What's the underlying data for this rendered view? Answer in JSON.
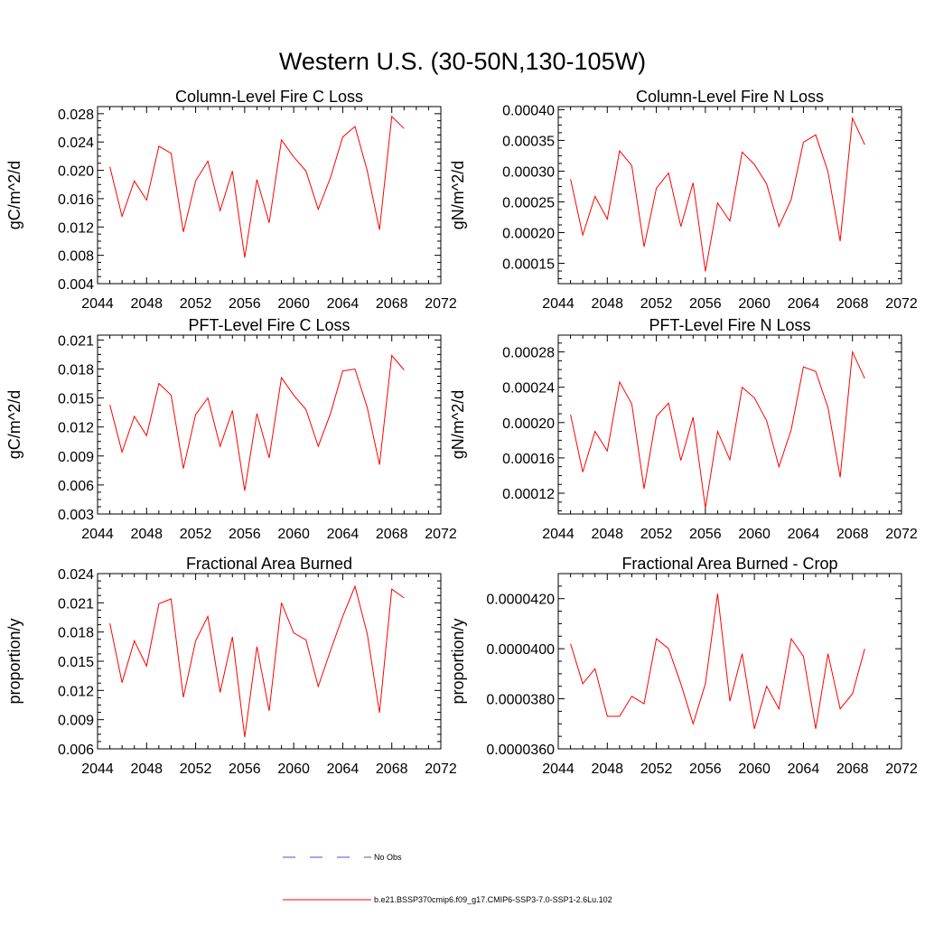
{
  "title": "Western U.S. (30-50N,130-105W)",
  "legend": [
    {
      "label": "No Obs",
      "color": "#4d4dcc",
      "style": "dashed"
    },
    {
      "label": "b.e21.BSSP370cmip6.f09_g17.CMIP6-SSP3-7.0-SSP1-2.6Lu.102",
      "color": "#ff0000",
      "style": "solid"
    }
  ],
  "chart_data": [
    {
      "type": "line",
      "title": "Column-Level Fire C Loss",
      "ylabel": "gC/m^2/d",
      "xlim": [
        2044,
        2072
      ],
      "ylim": [
        0.004,
        0.029
      ],
      "xticks": [
        "2044",
        "2048",
        "2052",
        "2056",
        "2060",
        "2064",
        "2068",
        "2072"
      ],
      "yticks": [
        "0.004",
        "0.008",
        "0.012",
        "0.016",
        "0.020",
        "0.024",
        "0.028"
      ],
      "x": [
        2045,
        2046,
        2047,
        2048,
        2049,
        2050,
        2051,
        2052,
        2053,
        2054,
        2055,
        2056,
        2057,
        2058,
        2059,
        2060,
        2061,
        2062,
        2063,
        2064,
        2065,
        2066,
        2067,
        2068,
        2069
      ],
      "values": [
        0.0205,
        0.0135,
        0.0185,
        0.0158,
        0.0234,
        0.0224,
        0.0113,
        0.0185,
        0.0213,
        0.0143,
        0.0199,
        0.0077,
        0.0187,
        0.0126,
        0.0243,
        0.0219,
        0.0199,
        0.0145,
        0.019,
        0.0247,
        0.0262,
        0.0199,
        0.0116,
        0.0276,
        0.0259
      ],
      "color": "#ff0000"
    },
    {
      "type": "line",
      "title": "Column-Level Fire N Loss",
      "ylabel": "gN/m^2/d",
      "xlim": [
        2044,
        2072
      ],
      "ylim": [
        0.000117,
        0.000405
      ],
      "xticks": [
        "2044",
        "2048",
        "2052",
        "2056",
        "2060",
        "2064",
        "2068",
        "2072"
      ],
      "yticks": [
        "0.00015",
        "0.00020",
        "0.00025",
        "0.00030",
        "0.00035",
        "0.00040"
      ],
      "x": [
        2045,
        2046,
        2047,
        2048,
        2049,
        2050,
        2051,
        2052,
        2053,
        2054,
        2055,
        2056,
        2057,
        2058,
        2059,
        2060,
        2061,
        2062,
        2063,
        2064,
        2065,
        2066,
        2067,
        2068,
        2069
      ],
      "values": [
        0.000287,
        0.000196,
        0.000259,
        0.000222,
        0.000333,
        0.000309,
        0.000177,
        0.000272,
        0.000297,
        0.00021,
        0.000281,
        0.000137,
        0.000248,
        0.000219,
        0.000331,
        0.000311,
        0.000279,
        0.00021,
        0.000254,
        0.000347,
        0.000359,
        0.000299,
        0.000186,
        0.000386,
        0.000343
      ],
      "color": "#ff0000"
    },
    {
      "type": "line",
      "title": "PFT-Level Fire C Loss",
      "ylabel": "gC/m^2/d",
      "xlim": [
        2044,
        2072
      ],
      "ylim": [
        0.003,
        0.0215
      ],
      "xticks": [
        "2044",
        "2048",
        "2052",
        "2056",
        "2060",
        "2064",
        "2068",
        "2072"
      ],
      "yticks": [
        "0.003",
        "0.006",
        "0.009",
        "0.012",
        "0.015",
        "0.018",
        "0.021"
      ],
      "x": [
        2045,
        2046,
        2047,
        2048,
        2049,
        2050,
        2051,
        2052,
        2053,
        2054,
        2055,
        2056,
        2057,
        2058,
        2059,
        2060,
        2061,
        2062,
        2063,
        2064,
        2065,
        2066,
        2067,
        2068,
        2069
      ],
      "values": [
        0.0143,
        0.0094,
        0.0131,
        0.0111,
        0.0165,
        0.0153,
        0.0077,
        0.0133,
        0.015,
        0.01,
        0.0137,
        0.0054,
        0.0134,
        0.0088,
        0.0171,
        0.0153,
        0.0138,
        0.01,
        0.0134,
        0.0178,
        0.018,
        0.014,
        0.0081,
        0.0194,
        0.0179
      ],
      "color": "#ff0000"
    },
    {
      "type": "line",
      "title": "PFT-Level Fire N Loss",
      "ylabel": "gN/m^2/d",
      "xlim": [
        2044,
        2072
      ],
      "ylim": [
        9.65e-05,
        0.000299
      ],
      "xticks": [
        "2044",
        "2048",
        "2052",
        "2056",
        "2060",
        "2064",
        "2068",
        "2072"
      ],
      "yticks": [
        "0.00012",
        "0.00016",
        "0.00020",
        "0.00024",
        "0.00028"
      ],
      "x": [
        2045,
        2046,
        2047,
        2048,
        2049,
        2050,
        2051,
        2052,
        2053,
        2054,
        2055,
        2056,
        2057,
        2058,
        2059,
        2060,
        2061,
        2062,
        2063,
        2064,
        2065,
        2066,
        2067,
        2068,
        2069
      ],
      "values": [
        0.000209,
        0.000144,
        0.00019,
        0.000168,
        0.000246,
        0.000221,
        0.000125,
        0.000207,
        0.000222,
        0.000157,
        0.000206,
        0.000103,
        0.00019,
        0.000158,
        0.00024,
        0.000228,
        0.000202,
        0.00015,
        0.000192,
        0.000263,
        0.000258,
        0.000217,
        0.000138,
        0.00028,
        0.00025
      ],
      "color": "#ff0000"
    },
    {
      "type": "line",
      "title": "Fractional Area Burned",
      "ylabel": "proportion/y",
      "xlim": [
        2044,
        2072
      ],
      "ylim": [
        0.006,
        0.024
      ],
      "xticks": [
        "2044",
        "2048",
        "2052",
        "2056",
        "2060",
        "2064",
        "2068",
        "2072"
      ],
      "yticks": [
        "0.006",
        "0.009",
        "0.012",
        "0.015",
        "0.018",
        "0.021",
        "0.024"
      ],
      "x": [
        2045,
        2046,
        2047,
        2048,
        2049,
        2050,
        2051,
        2052,
        2053,
        2054,
        2055,
        2056,
        2057,
        2058,
        2059,
        2060,
        2061,
        2062,
        2063,
        2064,
        2065,
        2066,
        2067,
        2068,
        2069
      ],
      "values": [
        0.0189,
        0.0128,
        0.0171,
        0.0145,
        0.0209,
        0.0214,
        0.0113,
        0.0171,
        0.0196,
        0.0118,
        0.0175,
        0.0072,
        0.0165,
        0.0099,
        0.021,
        0.0179,
        0.0172,
        0.0124,
        0.0161,
        0.0196,
        0.0227,
        0.0178,
        0.0097,
        0.0224,
        0.0215
      ],
      "color": "#ff0000"
    },
    {
      "type": "line",
      "title": "Fractional Area Burned - Crop",
      "ylabel": "proportion/y",
      "xlim": [
        2044,
        2072
      ],
      "ylim": [
        3.6e-05,
        4.3e-05
      ],
      "xticks": [
        "2044",
        "2048",
        "2052",
        "2056",
        "2060",
        "2064",
        "2068",
        "2072"
      ],
      "yticks": [
        "0.0000360",
        "0.0000380",
        "0.0000400",
        "0.0000420"
      ],
      "x": [
        2045,
        2046,
        2047,
        2048,
        2049,
        2050,
        2051,
        2052,
        2053,
        2054,
        2055,
        2056,
        2057,
        2058,
        2059,
        2060,
        2061,
        2062,
        2063,
        2064,
        2065,
        2066,
        2067,
        2068,
        2069
      ],
      "values": [
        4.02e-05,
        3.86e-05,
        3.92e-05,
        3.73e-05,
        3.73e-05,
        3.81e-05,
        3.78e-05,
        4.04e-05,
        4e-05,
        3.86e-05,
        3.7e-05,
        3.86e-05,
        4.22e-05,
        3.79e-05,
        3.98e-05,
        3.68e-05,
        3.85e-05,
        3.76e-05,
        4.04e-05,
        3.97e-05,
        3.68e-05,
        3.98e-05,
        3.76e-05,
        3.82e-05,
        4e-05
      ],
      "color": "#ff0000"
    }
  ]
}
